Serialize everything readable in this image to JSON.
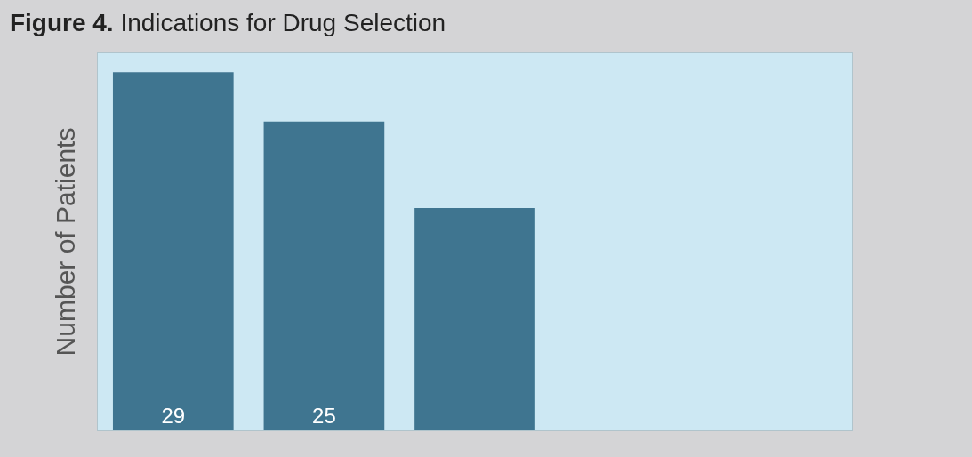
{
  "chart_data": {
    "type": "bar",
    "title": "Figure 4. Indications for Drug Selection",
    "ylabel": "Number of Patients",
    "categories": [
      null,
      null,
      null
    ],
    "values": [
      29,
      25,
      18
    ],
    "value_labels": [
      "29",
      "25",
      null
    ],
    "color": "#3f7590",
    "grid": false,
    "legend": false
  }
}
